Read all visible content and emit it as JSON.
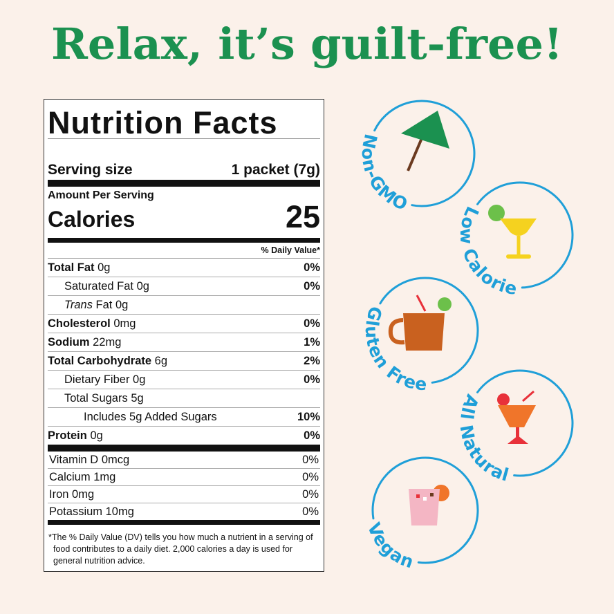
{
  "headline": "Relax, it’s guilt-free!",
  "label": {
    "title": "Nutrition Facts",
    "serving_size": {
      "label": "Serving size",
      "value": "1 packet (7g)"
    },
    "amount_per_serving": "Amount Per Serving",
    "calories": {
      "label": "Calories",
      "value": 25
    },
    "dv_header": "% Daily Value*",
    "rows": [
      {
        "name": "Total Fat",
        "amount": "0g",
        "dv": "0%"
      },
      {
        "name": "Saturated Fat",
        "amount": "0g",
        "dv": "0%"
      },
      {
        "name_italic": "Trans",
        "name": "Fat",
        "amount": "0g"
      },
      {
        "name": "Cholesterol",
        "amount": "0mg",
        "dv": "0%"
      },
      {
        "name": "Sodium",
        "amount": "22mg",
        "dv": "1%"
      },
      {
        "name": "Total Carbohydrate",
        "amount": "6g",
        "dv": "2%"
      },
      {
        "name": "Dietary Fiber",
        "amount": "0g",
        "dv": "0%"
      },
      {
        "name": "Total Sugars",
        "amount": "5g"
      },
      {
        "text": "Includes 5g Added Sugars",
        "dv": "10%"
      },
      {
        "name": "Protein",
        "amount": "0g",
        "dv": "0%"
      }
    ],
    "vitamins": [
      {
        "name": "Vitamin D",
        "amount": "0mcg",
        "dv": "0%"
      },
      {
        "name": "Calcium",
        "amount": "1mg",
        "dv": "0%"
      },
      {
        "name": "Iron",
        "amount": "0mg",
        "dv": "0%"
      },
      {
        "name": "Potassium",
        "amount": "10mg",
        "dv": "0%"
      }
    ],
    "footnote_marker": "*",
    "footnote": "The % Daily Value (DV) tells you how much a nutrient in a serving of food contributes to a daily diet. 2,000 calories a day is used for general nutrition advice."
  },
  "badges": [
    "Non-GMO",
    "Low Calorie",
    "Gluten Free",
    "All Natural",
    "Vegan"
  ]
}
